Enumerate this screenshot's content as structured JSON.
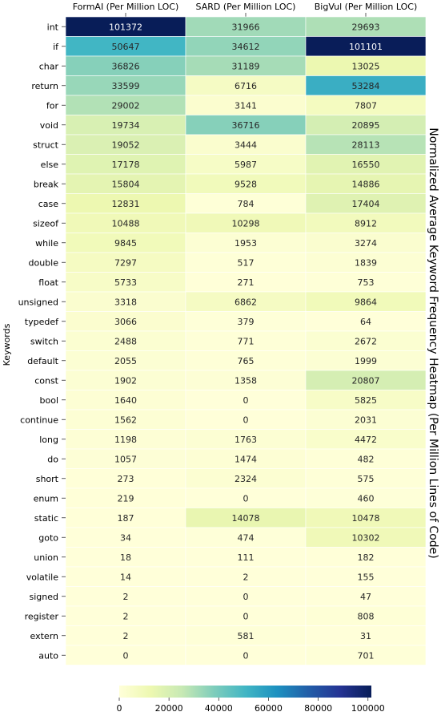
{
  "chart_data": {
    "type": "heatmap",
    "title": "Normalized Average Keyword Frequency Heatmap (Per Million Lines of Code)",
    "ylabel": "Keywords",
    "columns": [
      "FormAI (Per Million LOC)",
      "SARD (Per Million LOC)",
      "BigVul (Per Million LOC)"
    ],
    "rows": [
      "int",
      "if",
      "char",
      "return",
      "for",
      "void",
      "struct",
      "else",
      "break",
      "case",
      "sizeof",
      "while",
      "double",
      "float",
      "unsigned",
      "typedef",
      "switch",
      "default",
      "const",
      "bool",
      "continue",
      "long",
      "do",
      "short",
      "enum",
      "static",
      "goto",
      "union",
      "volatile",
      "signed",
      "register",
      "extern",
      "auto"
    ],
    "values": [
      [
        101372,
        31966,
        29693
      ],
      [
        50647,
        34612,
        101101
      ],
      [
        36826,
        31189,
        13025
      ],
      [
        33599,
        6716,
        53284
      ],
      [
        29002,
        3141,
        7807
      ],
      [
        19734,
        36716,
        20895
      ],
      [
        19052,
        3444,
        28113
      ],
      [
        17178,
        5987,
        16550
      ],
      [
        15804,
        9528,
        14886
      ],
      [
        12831,
        784,
        17404
      ],
      [
        10488,
        10298,
        8912
      ],
      [
        9845,
        1953,
        3274
      ],
      [
        7297,
        517,
        1839
      ],
      [
        5733,
        271,
        753
      ],
      [
        3318,
        6862,
        9864
      ],
      [
        3066,
        379,
        64
      ],
      [
        2488,
        771,
        2672
      ],
      [
        2055,
        765,
        1999
      ],
      [
        1902,
        1358,
        20807
      ],
      [
        1640,
        0,
        5825
      ],
      [
        1562,
        0,
        2031
      ],
      [
        1198,
        1763,
        4472
      ],
      [
        1057,
        1474,
        482
      ],
      [
        273,
        2324,
        575
      ],
      [
        219,
        0,
        460
      ],
      [
        187,
        14078,
        10478
      ],
      [
        34,
        474,
        10302
      ],
      [
        18,
        111,
        182
      ],
      [
        14,
        2,
        155
      ],
      [
        2,
        0,
        47
      ],
      [
        2,
        0,
        808
      ],
      [
        2,
        581,
        31
      ],
      [
        0,
        0,
        701
      ]
    ],
    "colormap": "YlGnBu",
    "vmin": 0,
    "vmax": 101372,
    "colorbar": {
      "orientation": "horizontal",
      "ticks": [
        0,
        20000,
        40000,
        60000,
        80000,
        100000
      ],
      "tick_labels": [
        "0",
        "20000",
        "40000",
        "60000",
        "80000",
        "100000"
      ]
    },
    "colormap_stops": [
      "#ffffd9",
      "#edf8b1",
      "#c7e9b4",
      "#7fcdbb",
      "#41b6c4",
      "#1d91c0",
      "#225ea8",
      "#253494",
      "#081d58"
    ]
  }
}
